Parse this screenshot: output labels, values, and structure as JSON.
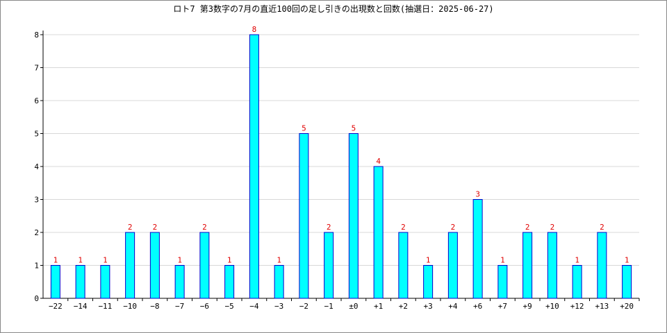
{
  "chart_data": {
    "type": "bar",
    "title": "ロト7 第3数字の7月の直近100回の足し引きの出現数と回数(抽選日：2025-06-27)",
    "xlabel": "",
    "ylabel": "",
    "ylim": [
      0,
      8
    ],
    "yticks": [
      "0",
      "1",
      "2",
      "3",
      "4",
      "5",
      "6",
      "7",
      "8"
    ],
    "grid": true,
    "bar_color": "#00ffff",
    "bar_edge_color": "#0000cc",
    "label_color": "#e00000",
    "categories": [
      "−22",
      "−14",
      "−11",
      "−10",
      "−8",
      "−7",
      "−6",
      "−5",
      "−4",
      "−3",
      "−2",
      "−1",
      "±0",
      "+1",
      "+2",
      "+3",
      "+4",
      "+6",
      "+7",
      "+9",
      "+10",
      "+12",
      "+13",
      "+20"
    ],
    "values": [
      1,
      1,
      1,
      2,
      2,
      1,
      2,
      1,
      8,
      1,
      5,
      2,
      5,
      4,
      2,
      1,
      2,
      3,
      1,
      2,
      2,
      1,
      2,
      1
    ]
  }
}
